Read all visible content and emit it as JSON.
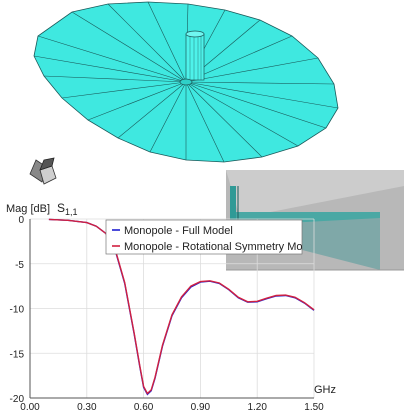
{
  "plot": {
    "ylabel": "Mag [dB]",
    "title_main": "S",
    "title_sub": "1,1",
    "xunit": "GHz"
  },
  "chart_data": {
    "type": "line",
    "xlim": [
      0.0,
      1.5
    ],
    "ylim": [
      -20,
      0
    ],
    "xticks": [
      "0.00",
      "0.30",
      "0.60",
      "0.90",
      "1.20",
      "1.50"
    ],
    "yticks": [
      "0",
      "-5",
      "-10",
      "-15",
      "-20"
    ],
    "grid": true,
    "legend_placement": "top-right",
    "series": [
      {
        "name": "Monopole - Full Model",
        "color": "#1f1fd0",
        "x": [
          0.1,
          0.2,
          0.3,
          0.35,
          0.4,
          0.45,
          0.5,
          0.55,
          0.58,
          0.6,
          0.62,
          0.64,
          0.66,
          0.7,
          0.75,
          0.8,
          0.85,
          0.9,
          0.95,
          1.0,
          1.05,
          1.1,
          1.15,
          1.2,
          1.25,
          1.3,
          1.35,
          1.4,
          1.45,
          1.5
        ],
        "y": [
          -0.05,
          -0.15,
          -0.4,
          -0.8,
          -1.6,
          -3.5,
          -7.2,
          -12.8,
          -16.5,
          -18.8,
          -19.6,
          -19.2,
          -17.8,
          -14.2,
          -10.8,
          -8.8,
          -7.6,
          -7.05,
          -6.95,
          -7.2,
          -7.9,
          -8.8,
          -9.3,
          -9.25,
          -8.9,
          -8.6,
          -8.55,
          -8.8,
          -9.4,
          -10.2
        ]
      },
      {
        "name": "Monopole - Rotational Symmetry Mo",
        "color": "#d02040",
        "x": [
          0.1,
          0.2,
          0.3,
          0.35,
          0.4,
          0.45,
          0.5,
          0.55,
          0.58,
          0.6,
          0.62,
          0.64,
          0.66,
          0.7,
          0.75,
          0.8,
          0.85,
          0.9,
          0.95,
          1.0,
          1.05,
          1.1,
          1.15,
          1.2,
          1.25,
          1.3,
          1.35,
          1.4,
          1.45,
          1.5
        ],
        "y": [
          -0.05,
          -0.15,
          -0.4,
          -0.8,
          -1.6,
          -3.4,
          -7.1,
          -12.7,
          -16.4,
          -18.7,
          -19.5,
          -19.1,
          -17.7,
          -14.1,
          -10.7,
          -8.7,
          -7.5,
          -7.0,
          -6.9,
          -7.15,
          -7.85,
          -8.75,
          -9.25,
          -9.2,
          -8.85,
          -8.55,
          -8.5,
          -8.75,
          -9.35,
          -10.15
        ]
      }
    ]
  },
  "colors": {
    "dish": "#3fe8e0",
    "dish_edge": "#1a5a5a",
    "background": "#ffffff"
  }
}
